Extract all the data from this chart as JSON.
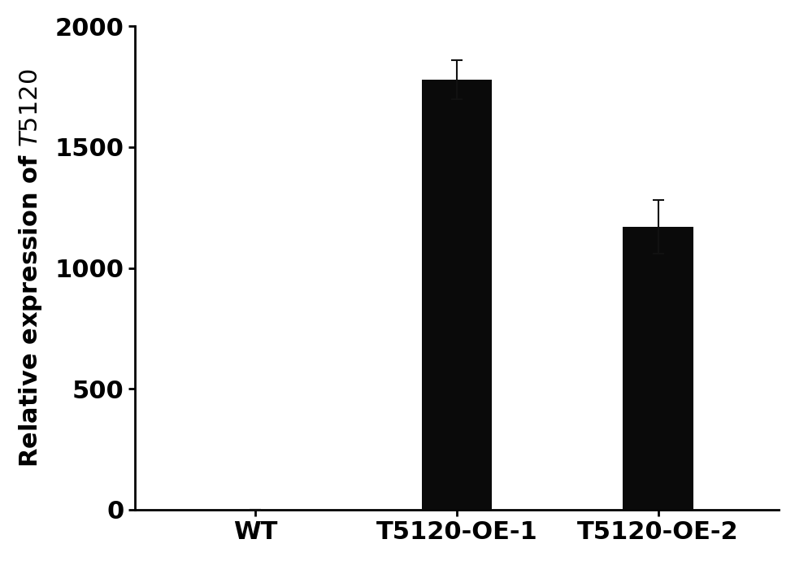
{
  "categories": [
    "WT",
    "T5120-OE-1",
    "T5120-OE-2"
  ],
  "values": [
    0,
    1780,
    1170
  ],
  "errors": [
    0,
    80,
    110
  ],
  "bar_color": "#0a0a0a",
  "bar_width": 0.35,
  "ylim": [
    0,
    2000
  ],
  "yticks": [
    0,
    500,
    1000,
    1500,
    2000
  ],
  "ylabel": "Relative expression of $\\it{T5120}$",
  "background_color": "#ffffff",
  "tick_fontsize": 22,
  "label_fontsize": 22,
  "error_capsize": 5,
  "error_linewidth": 1.5,
  "error_color": "#111111",
  "xlim": [
    -0.6,
    2.6
  ]
}
